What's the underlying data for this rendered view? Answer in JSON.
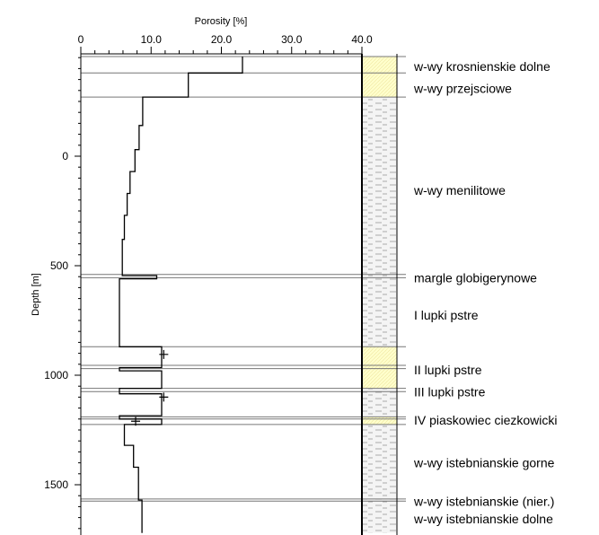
{
  "chart_data": {
    "type": "line",
    "title": "",
    "xlabel": "Porosity [%]",
    "ylabel": "Depth [m]",
    "xlim": [
      0,
      40
    ],
    "ylim": [
      -540,
      1720
    ],
    "x_ticks": [
      "0",
      "10.0",
      "20.0",
      "30.0",
      "40.0"
    ],
    "y_ticks": [
      "0",
      "500",
      "1000",
      "1500"
    ],
    "grid": false,
    "series": [
      {
        "points": [
          {
            "x": 23.0,
            "y": -455
          },
          {
            "x": 23.0,
            "y": -380
          },
          {
            "x": 15.3,
            "y": -380
          },
          {
            "x": 15.3,
            "y": -270
          },
          {
            "x": 8.8,
            "y": -270
          },
          {
            "x": 8.8,
            "y": -140
          },
          {
            "x": 8.3,
            "y": -140
          },
          {
            "x": 8.3,
            "y": -30
          },
          {
            "x": 7.7,
            "y": -30
          },
          {
            "x": 7.7,
            "y": 70
          },
          {
            "x": 7.0,
            "y": 70
          },
          {
            "x": 7.0,
            "y": 170
          },
          {
            "x": 6.6,
            "y": 170
          },
          {
            "x": 6.6,
            "y": 270
          },
          {
            "x": 6.2,
            "y": 270
          },
          {
            "x": 6.2,
            "y": 380
          },
          {
            "x": 5.9,
            "y": 380
          },
          {
            "x": 5.9,
            "y": 545
          },
          {
            "x": 10.8,
            "y": 545
          },
          {
            "x": 10.8,
            "y": 560
          },
          {
            "x": 5.5,
            "y": 560
          },
          {
            "x": 5.5,
            "y": 870
          },
          {
            "x": 11.5,
            "y": 870
          },
          {
            "x": 11.5,
            "y": 965
          },
          {
            "x": 5.5,
            "y": 965
          },
          {
            "x": 5.5,
            "y": 980
          },
          {
            "x": 11.5,
            "y": 980
          },
          {
            "x": 11.5,
            "y": 1060
          },
          {
            "x": 5.5,
            "y": 1060
          },
          {
            "x": 5.5,
            "y": 1085
          },
          {
            "x": 11.5,
            "y": 1085
          },
          {
            "x": 11.5,
            "y": 1185
          },
          {
            "x": 5.5,
            "y": 1185
          },
          {
            "x": 5.5,
            "y": 1200
          },
          {
            "x": 11.5,
            "y": 1200
          },
          {
            "x": 11.5,
            "y": 1225
          },
          {
            "x": 6.2,
            "y": 1225
          },
          {
            "x": 6.2,
            "y": 1320
          },
          {
            "x": 7.5,
            "y": 1320
          },
          {
            "x": 7.5,
            "y": 1420
          },
          {
            "x": 8.2,
            "y": 1420
          },
          {
            "x": 8.2,
            "y": 1570
          },
          {
            "x": 8.7,
            "y": 1570
          },
          {
            "x": 8.7,
            "y": 1720
          }
        ]
      }
    ],
    "markers": [
      {
        "x": 11.8,
        "y": 905
      },
      {
        "x": 11.8,
        "y": 1100
      },
      {
        "x": 7.8,
        "y": 1210
      }
    ],
    "boundaries": [
      -455,
      -380,
      -270,
      540,
      555,
      870,
      955,
      970,
      1060,
      1075,
      1190,
      1200,
      1225,
      1565,
      1575
    ],
    "lithology_column": [
      {
        "top": -455,
        "bottom": -270,
        "pattern": "sandstone",
        "color": "#ffffcc"
      },
      {
        "top": -270,
        "bottom": 870,
        "pattern": "shale",
        "color": "#f2f2f2"
      },
      {
        "top": 870,
        "bottom": 1060,
        "pattern": "sandstone",
        "color": "#ffffcc"
      },
      {
        "top": 1060,
        "bottom": 1190,
        "pattern": "shale",
        "color": "#f2f2f2"
      },
      {
        "top": 1190,
        "bottom": 1225,
        "pattern": "sandstone",
        "color": "#ffffcc"
      },
      {
        "top": 1225,
        "bottom": 1720,
        "pattern": "shale",
        "color": "#f2f2f2"
      }
    ],
    "formations": [
      {
        "label": "w-wy krosnienskie dolne",
        "depth": -410
      },
      {
        "label": "w-wy przejsciowe",
        "depth": -310
      },
      {
        "label": "w-wy menilitowe",
        "depth": 155
      },
      {
        "label": "margle globigerynowe",
        "depth": 555
      },
      {
        "label": "I lupki pstre",
        "depth": 725
      },
      {
        "label": "II lupki pstre",
        "depth": 975
      },
      {
        "label": "III lupki pstre",
        "depth": 1075
      },
      {
        "label": "IV piaskowiec ciezkowicki",
        "depth": 1205
      },
      {
        "label": "w-wy istebnianskie gorne",
        "depth": 1400
      },
      {
        "label": "w-wy istebnianskie (nier.)",
        "depth": 1575
      },
      {
        "label": "w-wy istebnianskie dolne",
        "depth": 1655
      }
    ]
  }
}
